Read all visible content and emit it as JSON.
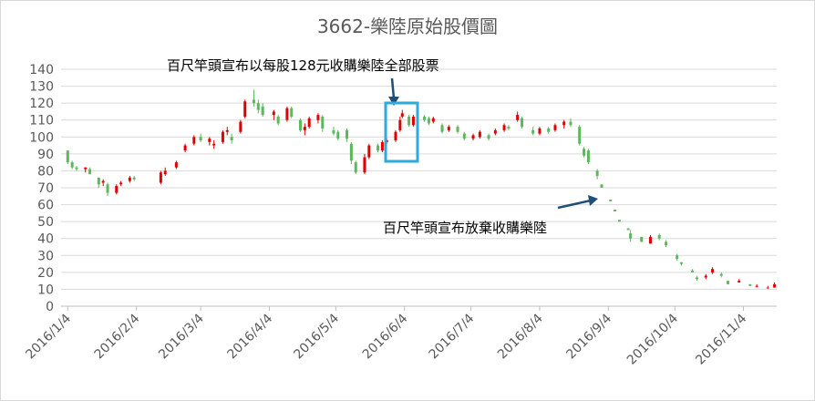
{
  "chart_data": {
    "type": "candlestick",
    "title": "3662-樂陸原始股價圖",
    "annotations": [
      "百尺竿頭宣布以每股128元收購樂陸全部股票",
      "百尺竿頭宣布放棄收購樂陸"
    ],
    "up_color": "#e00000",
    "down_color": "#5cb85c",
    "grid": true,
    "ylim": [
      0,
      140
    ],
    "yticks": [
      0,
      10,
      20,
      30,
      40,
      50,
      60,
      70,
      80,
      90,
      100,
      110,
      120,
      130,
      140
    ],
    "xlim": [
      "2016/1/1",
      "2016/11/19"
    ],
    "xticks": [
      "2016/1/4",
      "2016/2/4",
      "2016/3/4",
      "2016/4/4",
      "2016/5/4",
      "2016/6/4",
      "2016/7/4",
      "2016/8/4",
      "2016/9/4",
      "2016/10/4",
      "2016/11/4"
    ],
    "x": [
      "2016/1/4",
      "2016/1/6",
      "2016/1/8",
      "2016/1/12",
      "2016/1/14",
      "2016/1/18",
      "2016/1/20",
      "2016/1/22",
      "2016/1/26",
      "2016/1/28",
      "2016/2/1",
      "2016/2/3",
      "2016/2/15",
      "2016/2/17",
      "2016/2/22",
      "2016/2/26",
      "2016/3/1",
      "2016/3/4",
      "2016/3/8",
      "2016/3/10",
      "2016/3/14",
      "2016/3/16",
      "2016/3/18",
      "2016/3/22",
      "2016/3/24",
      "2016/3/28",
      "2016/3/30",
      "2016/4/1",
      "2016/4/6",
      "2016/4/8",
      "2016/4/12",
      "2016/4/14",
      "2016/4/18",
      "2016/4/20",
      "2016/4/22",
      "2016/4/26",
      "2016/4/28",
      "2016/5/3",
      "2016/5/5",
      "2016/5/9",
      "2016/5/11",
      "2016/5/13",
      "2016/5/17",
      "2016/5/19",
      "2016/5/23",
      "2016/5/25",
      "2016/5/27",
      "2016/5/31",
      "2016/6/2",
      "2016/6/3",
      "2016/6/6",
      "2016/6/8",
      "2016/6/13",
      "2016/6/15",
      "2016/6/17",
      "2016/6/21",
      "2016/6/24",
      "2016/6/28",
      "2016/7/1",
      "2016/7/5",
      "2016/7/8",
      "2016/7/12",
      "2016/7/15",
      "2016/7/19",
      "2016/7/21",
      "2016/7/25",
      "2016/7/27",
      "2016/8/1",
      "2016/8/4",
      "2016/8/8",
      "2016/8/11",
      "2016/8/15",
      "2016/8/18",
      "2016/8/22",
      "2016/8/24",
      "2016/8/26",
      "2016/8/30",
      "2016/9/1",
      "2016/9/5",
      "2016/9/7",
      "2016/9/9",
      "2016/9/13",
      "2016/9/14",
      "2016/9/19",
      "2016/9/23",
      "2016/9/27",
      "2016/9/30",
      "2016/10/5",
      "2016/10/7",
      "2016/10/12",
      "2016/10/14",
      "2016/10/18",
      "2016/10/21",
      "2016/10/25",
      "2016/10/28",
      "2016/11/2",
      "2016/11/7",
      "2016/11/10",
      "2016/11/15",
      "2016/11/18"
    ],
    "open": [
      92,
      85,
      82,
      81,
      81,
      76,
      73,
      72,
      67,
      72,
      74,
      76,
      73,
      78,
      82,
      92,
      96,
      100,
      97,
      95,
      97,
      103,
      100,
      103,
      112,
      122,
      120,
      118,
      113,
      112,
      110,
      117,
      110,
      104,
      106,
      110,
      112,
      104,
      103,
      104,
      96,
      85,
      79,
      88,
      95,
      92,
      97,
      98,
      104,
      112,
      112,
      107,
      112,
      111,
      109,
      107,
      104,
      106,
      102,
      99,
      100,
      101,
      102,
      104,
      106,
      110,
      111,
      104,
      102,
      105,
      104,
      107,
      109,
      106,
      93,
      92,
      80,
      72,
      63,
      57,
      51,
      46,
      43,
      41,
      37,
      42,
      38,
      30,
      26,
      21,
      17,
      17,
      20,
      19,
      15,
      14,
      13,
      12,
      11,
      11
    ],
    "high": [
      92,
      86,
      83,
      82,
      82,
      76,
      75,
      73,
      72,
      74,
      77,
      77,
      80,
      82,
      86,
      96,
      101,
      102,
      100,
      98,
      104,
      106,
      102,
      110,
      122,
      128,
      122,
      120,
      116,
      113,
      118,
      118,
      111,
      108,
      112,
      114,
      113,
      106,
      104,
      105,
      97,
      86,
      90,
      96,
      96,
      98,
      99,
      104,
      112,
      116,
      113,
      113,
      113,
      112,
      112,
      108,
      107,
      107,
      103,
      102,
      104,
      102,
      105,
      108,
      107,
      115,
      112,
      106,
      106,
      106,
      108,
      110,
      111,
      107,
      94,
      93,
      81,
      72,
      63,
      57,
      51,
      46,
      45,
      41,
      42,
      43,
      39,
      31,
      26,
      22,
      18,
      19,
      23,
      20,
      15,
      16,
      13,
      13,
      12,
      14
    ],
    "low": [
      84,
      81,
      80,
      79,
      78,
      70,
      71,
      65,
      66,
      71,
      73,
      74,
      72,
      77,
      81,
      91,
      95,
      97,
      95,
      93,
      96,
      101,
      96,
      102,
      111,
      118,
      114,
      112,
      110,
      107,
      109,
      111,
      103,
      101,
      105,
      108,
      103,
      101,
      98,
      97,
      84,
      78,
      78,
      87,
      91,
      91,
      96,
      97,
      103,
      111,
      106,
      106,
      109,
      107,
      108,
      102,
      103,
      102,
      98,
      98,
      99,
      98,
      101,
      103,
      104,
      109,
      105,
      101,
      101,
      102,
      103,
      105,
      106,
      95,
      88,
      84,
      75,
      70,
      62,
      56,
      50,
      45,
      38,
      38,
      37,
      39,
      35,
      27,
      24,
      20,
      15,
      16,
      19,
      17,
      13,
      14,
      12,
      11,
      11,
      11
    ],
    "close": [
      85,
      82,
      81,
      82,
      78,
      72,
      74,
      67,
      71,
      73,
      76,
      75,
      79,
      80,
      85,
      95,
      100,
      98,
      99,
      96,
      103,
      104,
      98,
      109,
      121,
      120,
      116,
      113,
      115,
      108,
      117,
      112,
      104,
      106,
      111,
      113,
      105,
      102,
      99,
      99,
      86,
      79,
      88,
      95,
      92,
      97,
      98,
      103,
      110,
      114,
      107,
      112,
      110,
      108,
      111,
      103,
      106,
      103,
      99,
      101,
      103,
      99,
      104,
      107,
      105,
      113,
      106,
      102,
      105,
      103,
      107,
      109,
      107,
      96,
      89,
      85,
      77,
      70,
      62,
      56,
      50,
      45,
      40,
      38,
      41,
      40,
      36,
      28,
      25,
      20,
      16,
      18,
      22,
      18,
      13,
      15,
      12,
      12,
      11,
      13
    ]
  }
}
